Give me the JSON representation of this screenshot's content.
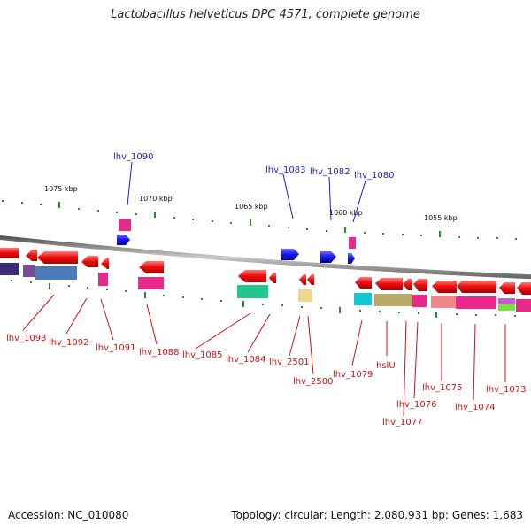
{
  "title": "Lactobacillus helveticus DPC 4571, complete genome",
  "footer": {
    "accession": "Accession: NC_010080",
    "summary": "Topology: circular; Length: 2,080,931 bp; Genes: 1,683"
  },
  "scale_labels": [
    "1075 kbp",
    "1070 kbp",
    "1065 kbp",
    "1060 kbp",
    "1055 kbp"
  ],
  "gene_labels_top": [
    "lhv_1090",
    "lhv_1083",
    "lhv_1082",
    "lhv_1080"
  ],
  "gene_labels_bottom": [
    "lhv_1093",
    "lhv_1092",
    "lhv_1091",
    "lhv_1088",
    "lhv_1085",
    "lhv_1084",
    "lhv_2501",
    "lhv_2500",
    "lhv_1079",
    "hslU",
    "lhv_1077",
    "lhv_1076",
    "lhv_1075",
    "lhv_1074",
    "lhv_1073"
  ],
  "colors": {
    "forward_gene": "#1a1aee",
    "reverse_gene": "#ee1111",
    "top_label": "#1a1acc",
    "bottom_label": "#cc1111",
    "backbone": "#8a8a8a",
    "tick": "#2a8a2a"
  }
}
